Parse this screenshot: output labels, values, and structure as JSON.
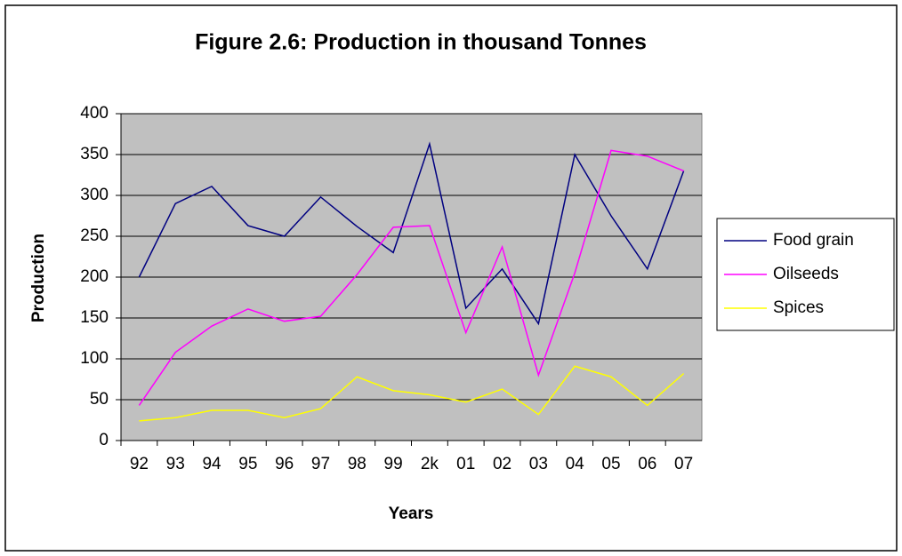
{
  "chart_data": {
    "type": "line",
    "title": "Figure 2.6: Production in thousand Tonnes",
    "x_label": "Years",
    "y_label": "Production",
    "categories": [
      "92",
      "93",
      "94",
      "95",
      "96",
      "97",
      "98",
      "99",
      "2k",
      "01",
      "02",
      "03",
      "04",
      "05",
      "06",
      "07"
    ],
    "series": [
      {
        "name": "Food grain",
        "color": "#000080",
        "values": [
          200,
          290,
          311,
          263,
          250,
          298,
          262,
          230,
          363,
          162,
          210,
          143,
          350,
          275,
          210,
          330
        ]
      },
      {
        "name": "Oilseeds",
        "color": "#ff00ff",
        "values": [
          43,
          108,
          140,
          161,
          146,
          152,
          203,
          261,
          263,
          132,
          237,
          80,
          205,
          355,
          348,
          330
        ]
      },
      {
        "name": "Spices",
        "color": "#ffff00",
        "values": [
          24,
          28,
          37,
          37,
          28,
          39,
          78,
          61,
          56,
          47,
          63,
          32,
          91,
          78,
          43,
          82
        ]
      }
    ],
    "ylim": [
      0,
      400
    ],
    "yticks": [
      0,
      50,
      100,
      150,
      200,
      250,
      300,
      350,
      400
    ],
    "grid": true,
    "legend": "right"
  }
}
